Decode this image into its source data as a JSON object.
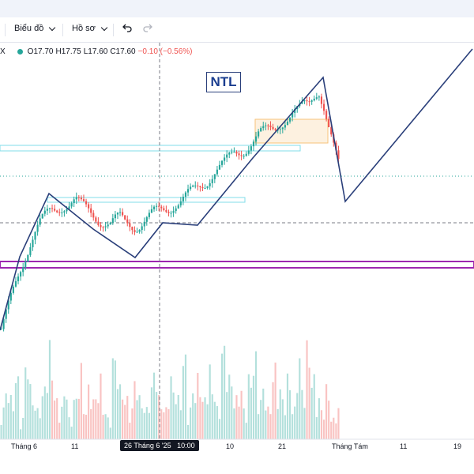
{
  "toolbar": {
    "chart_label": "Biểu đồ",
    "profile_label": "Hồ sơ",
    "undo_icon": "undo-icon",
    "redo_icon": "redo-icon"
  },
  "legend": {
    "symbol_fragment": "X",
    "open": "O17.70",
    "high": "H17.75",
    "low": "L17.60",
    "close": "C17.60",
    "change": "−0.10 (−0.56%)"
  },
  "annotation": {
    "ticker_label": "NTL"
  },
  "crosshair": {
    "date_label": "26 Tháng 6 '25",
    "time_label": "10:00"
  },
  "colors": {
    "up": "#26a69a",
    "down": "#ef5350",
    "trend": "#2a3f7a",
    "support": "#9c27b0",
    "zone": "#80deea",
    "highlight": "#f7c27a"
  },
  "chart_data": {
    "type": "candlestick",
    "x_tick_labels": [
      "Tháng 6",
      "11",
      "26 Tháng 6 '25",
      "10:00",
      "10",
      "21",
      "Tháng Tám",
      "11",
      "19"
    ],
    "last_bar": {
      "open": 17.7,
      "high": 17.75,
      "low": 17.6,
      "close": 17.6,
      "change": -0.1,
      "change_pct": -0.56
    },
    "close_path": [
      14.2,
      14.6,
      15.0,
      15.4,
      15.8,
      16.2,
      16.6,
      16.9,
      17.1,
      17.2,
      17.3,
      17.35,
      17.45,
      17.55,
      17.6,
      17.65,
      17.5,
      17.4,
      17.3,
      17.2,
      17.1,
      17.05,
      17.0,
      17.1,
      17.15,
      17.05,
      17.0,
      16.95,
      17.0,
      17.1,
      17.2,
      17.3,
      17.35,
      17.4,
      17.45,
      17.55,
      17.6,
      17.7,
      17.8,
      17.9,
      18.0,
      18.1,
      18.25,
      18.4,
      18.5,
      18.6,
      18.75,
      18.9,
      18.95,
      19.0,
      19.1,
      19.2,
      19.35,
      19.45,
      19.55,
      19.6,
      19.7,
      19.75,
      19.8,
      19.9,
      20.0,
      20.2,
      20.3,
      20.5,
      20.6,
      20.1,
      19.5,
      19.0,
      18.6
    ],
    "volume_path": [
      3,
      5,
      4,
      6,
      2,
      8,
      5,
      3,
      4,
      6,
      9,
      4,
      3,
      5,
      2,
      4,
      7,
      3,
      5,
      4,
      6,
      3,
      2,
      8,
      5,
      4,
      3,
      6,
      4,
      3,
      5,
      7,
      4,
      3,
      6,
      5,
      4,
      8,
      3,
      5,
      6,
      4,
      7,
      5,
      3,
      9,
      6,
      4,
      5,
      3,
      6,
      8,
      4,
      5,
      3,
      7,
      5,
      4,
      6,
      3,
      8,
      5,
      9,
      6,
      4,
      3,
      5,
      2,
      3
    ],
    "y_range": [
      14.0,
      21.5
    ],
    "grid": false
  }
}
